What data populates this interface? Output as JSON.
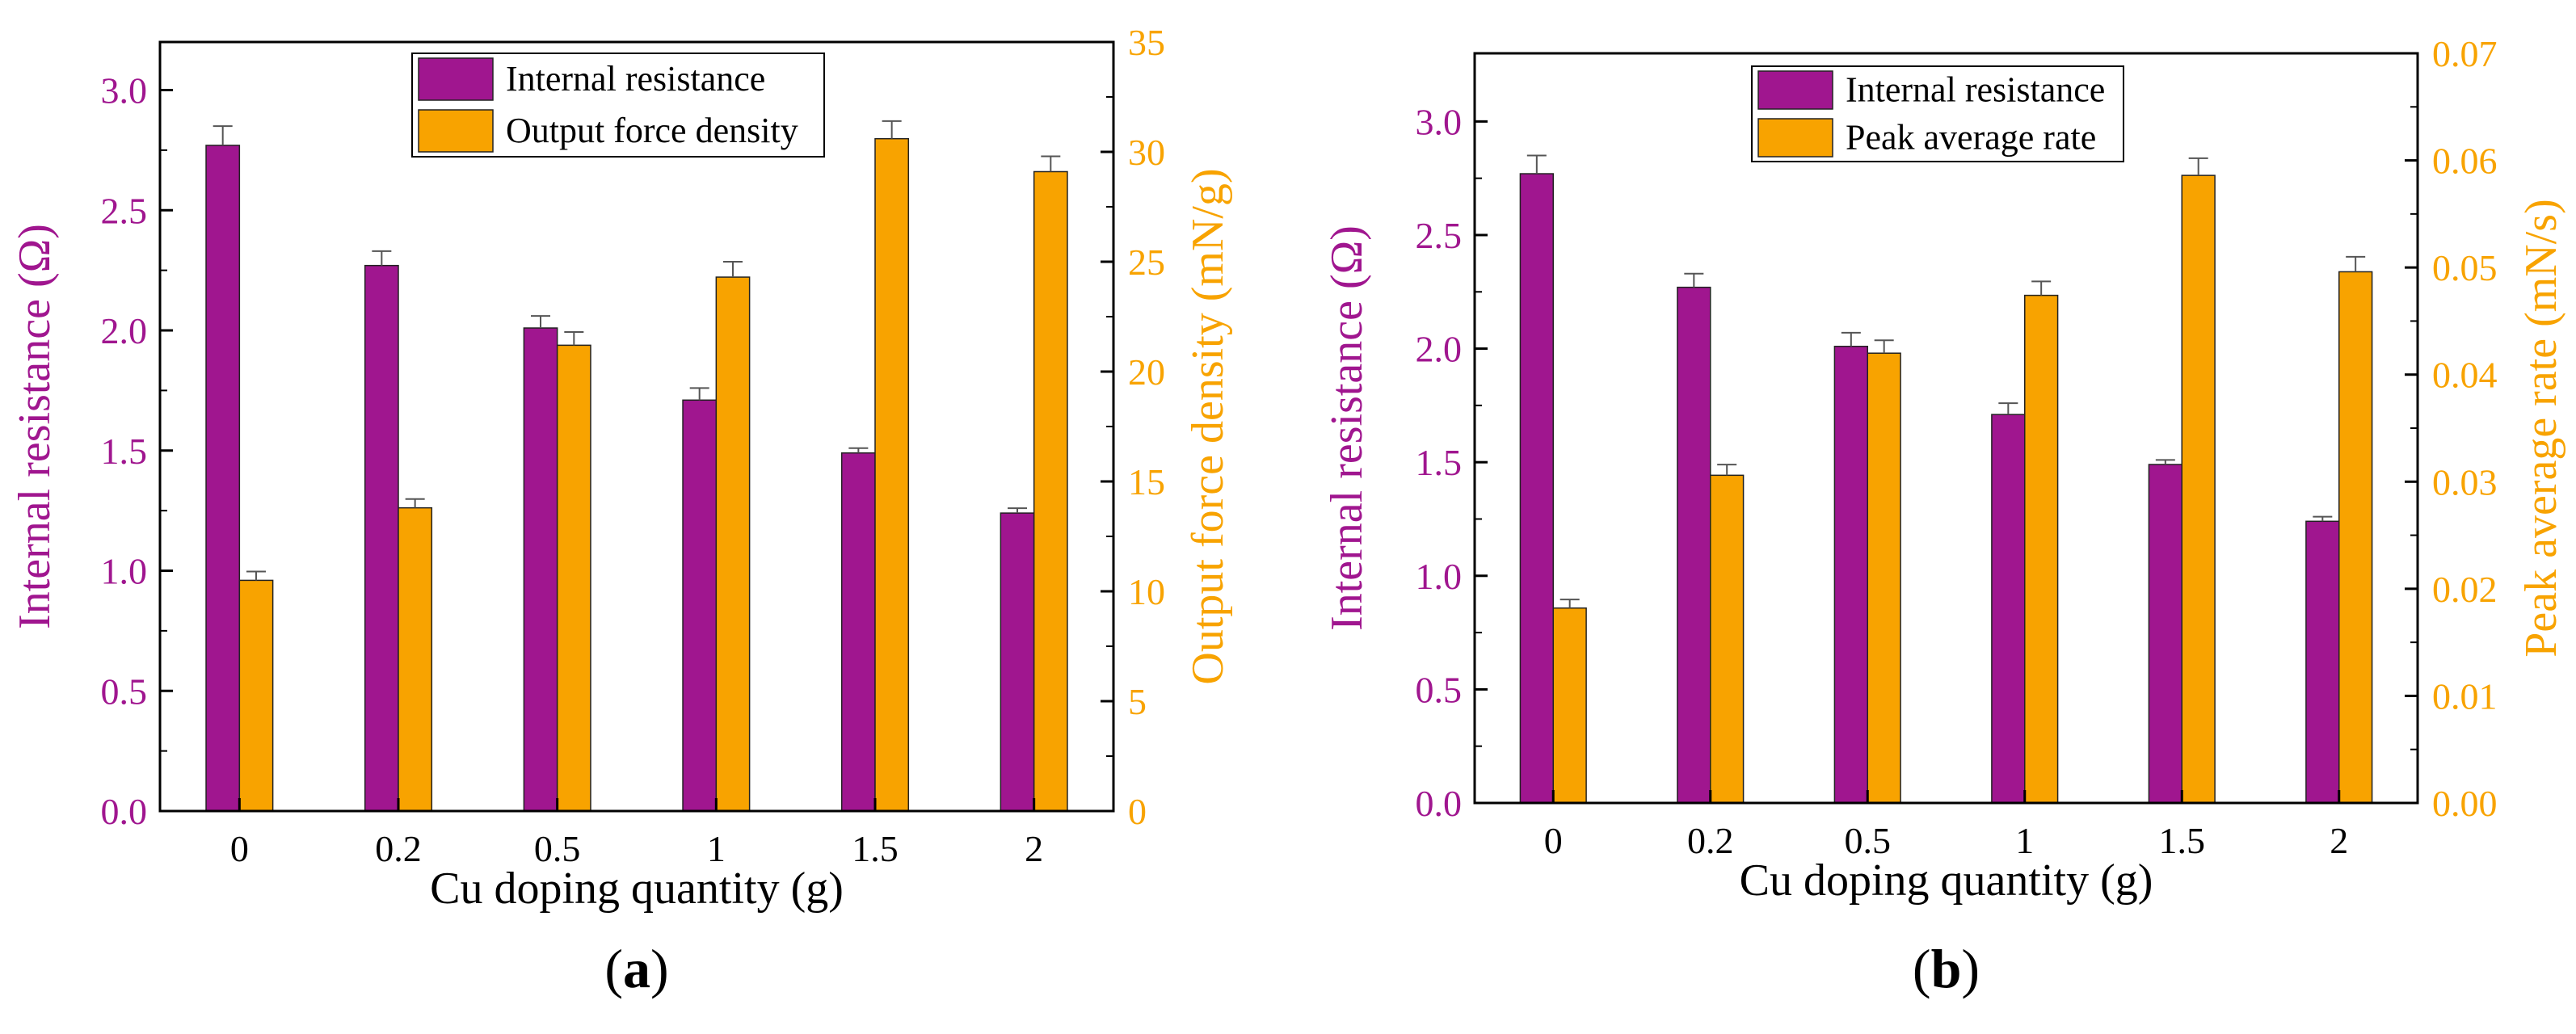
{
  "colors": {
    "resistance": "#a0168f",
    "secondary": "#f8a300",
    "axis": "#000000"
  },
  "chart_data": [
    {
      "type": "bar",
      "panel_label": "a",
      "categories": [
        "0",
        "0.2",
        "0.5",
        "1",
        "1.5",
        "2"
      ],
      "xlabel": "Cu doping quantity (g)",
      "y_left": {
        "label": "Internal resistance (Ω)",
        "lim": [
          0,
          3.2
        ],
        "ticks": [
          "0.0",
          "0.5",
          "1.0",
          "1.5",
          "2.0",
          "2.5",
          "3.0"
        ]
      },
      "y_right": {
        "label": "Output force density (mN/g)",
        "lim": [
          0,
          35
        ],
        "ticks": [
          "0",
          "5",
          "10",
          "15",
          "20",
          "25",
          "30",
          "35"
        ]
      },
      "legend_position": "top-center",
      "series": [
        {
          "name": "Internal resistance",
          "axis": "left",
          "values": [
            2.77,
            2.27,
            2.01,
            1.71,
            1.49,
            1.24
          ],
          "errors": [
            0.08,
            0.06,
            0.05,
            0.05,
            0.02,
            0.02
          ]
        },
        {
          "name": "Output force density",
          "axis": "right",
          "values": [
            10.5,
            13.8,
            21.2,
            24.3,
            30.6,
            29.1
          ],
          "errors": [
            0.4,
            0.4,
            0.6,
            0.7,
            0.8,
            0.7
          ]
        }
      ]
    },
    {
      "type": "bar",
      "panel_label": "b",
      "categories": [
        "0",
        "0.2",
        "0.5",
        "1",
        "1.5",
        "2"
      ],
      "xlabel": "Cu doping quantity (g)",
      "y_left": {
        "label": "Internal resistance (Ω)",
        "lim": [
          0,
          3.3
        ],
        "ticks": [
          "0.0",
          "0.5",
          "1.0",
          "1.5",
          "2.0",
          "2.5",
          "3.0"
        ]
      },
      "y_right": {
        "label": "Peak average rate (mN/s)",
        "lim": [
          0,
          0.07
        ],
        "ticks": [
          "0.00",
          "0.01",
          "0.02",
          "0.03",
          "0.04",
          "0.05",
          "0.06",
          "0.07"
        ]
      },
      "legend_position": "top-center",
      "series": [
        {
          "name": "Internal resistance",
          "axis": "left",
          "values": [
            2.77,
            2.27,
            2.01,
            1.71,
            1.49,
            1.24
          ],
          "errors": [
            0.08,
            0.06,
            0.06,
            0.05,
            0.02,
            0.02
          ]
        },
        {
          "name": "Peak average rate",
          "axis": "right",
          "values": [
            0.0182,
            0.0306,
            0.042,
            0.0474,
            0.0586,
            0.0496
          ],
          "errors": [
            0.0008,
            0.001,
            0.0012,
            0.0013,
            0.0016,
            0.0014
          ]
        }
      ]
    }
  ]
}
